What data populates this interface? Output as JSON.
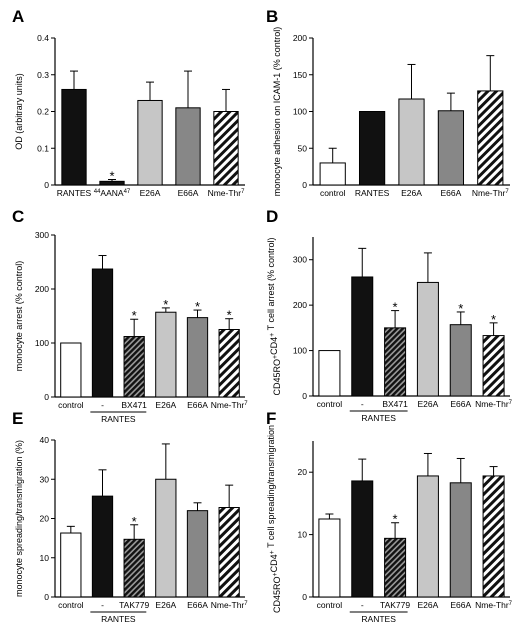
{
  "chart_data": [
    {
      "panel": "A",
      "type": "bar",
      "ylabel": "OD (arbitrary units)",
      "ylim": [
        0,
        0.4
      ],
      "yticks": [
        "0",
        "0.1",
        "0.2",
        "0.3",
        "0.4"
      ],
      "categories": [
        "RANTES",
        "44AANA47",
        "E26A",
        "E66A",
        "Nme-Thr7"
      ],
      "values": [
        0.26,
        0.01,
        0.23,
        0.21,
        0.2
      ],
      "errors": [
        0.05,
        0.005,
        0.05,
        0.1,
        0.06
      ],
      "significant": [
        false,
        true,
        false,
        false,
        false
      ],
      "fills": [
        "black",
        "black",
        "lightgray",
        "gray",
        "hatch"
      ]
    },
    {
      "panel": "B",
      "type": "bar",
      "ylabel": "monocyte adhesion on ICAM-1 (% control)",
      "ylim": [
        0,
        200
      ],
      "yticks": [
        "0",
        "50",
        "100",
        "150",
        "200"
      ],
      "categories": [
        "control",
        "RANTES",
        "E26A",
        "E66A",
        "Nme-Thr7"
      ],
      "values": [
        30,
        100,
        117,
        101,
        128
      ],
      "errors": [
        20,
        0,
        47,
        24,
        48
      ],
      "significant": [
        false,
        false,
        false,
        false,
        false
      ],
      "fills": [
        "white",
        "black",
        "lightgray",
        "gray",
        "hatch"
      ]
    },
    {
      "panel": "C",
      "type": "bar",
      "ylabel": "monocyte arrest (% control)",
      "ylim": [
        0,
        300
      ],
      "yticks": [
        "0",
        "100",
        "200",
        "300"
      ],
      "categories": [
        "control",
        "-",
        "BX471",
        "E26A",
        "E66A",
        "Nme-Thr7"
      ],
      "group_label": "RANTES",
      "values": [
        100,
        237,
        112,
        157,
        147,
        125
      ],
      "errors": [
        0,
        25,
        32,
        8,
        14,
        20
      ],
      "significant": [
        false,
        false,
        true,
        true,
        true,
        true
      ],
      "fills": [
        "white",
        "black",
        "darkhatch",
        "lightgray",
        "gray",
        "hatch"
      ]
    },
    {
      "panel": "D",
      "type": "bar",
      "ylabel": "CD45RO+CD4+ T cell arrest (% control)",
      "ylim": [
        0,
        350
      ],
      "yticks": [
        "0",
        "100",
        "200",
        "300"
      ],
      "categories": [
        "control",
        "-",
        "BX471",
        "E26A",
        "E66A",
        "Nme-Thr7"
      ],
      "group_label": "RANTES",
      "values": [
        100,
        262,
        150,
        250,
        157,
        133
      ],
      "errors": [
        0,
        63,
        38,
        65,
        28,
        28
      ],
      "significant": [
        false,
        false,
        true,
        false,
        true,
        true
      ],
      "fills": [
        "white",
        "black",
        "darkhatch",
        "lightgray",
        "gray",
        "hatch"
      ]
    },
    {
      "panel": "E",
      "type": "bar",
      "ylabel": "monocyte spreading/transmigration (%)",
      "ylim": [
        0,
        40
      ],
      "yticks": [
        "0",
        "10",
        "20",
        "30",
        "40"
      ],
      "categories": [
        "control",
        "-",
        "TAK779",
        "E26A",
        "E66A",
        "Nme-Thr7"
      ],
      "group_label": "RANTES",
      "values": [
        16.3,
        25.7,
        14.7,
        30,
        22,
        22.8
      ],
      "errors": [
        1.7,
        6.7,
        3.7,
        9,
        2,
        5.7
      ],
      "significant": [
        false,
        false,
        true,
        false,
        false,
        false
      ],
      "fills": [
        "white",
        "black",
        "darkhatch",
        "lightgray",
        "gray",
        "hatch"
      ]
    },
    {
      "panel": "F",
      "type": "bar",
      "ylabel": "CD45RO+CD4+ T cell spreading/transmigration",
      "ylim": [
        0,
        25
      ],
      "yticks": [
        "0",
        "10",
        "20"
      ],
      "categories": [
        "control",
        "-",
        "TAK779",
        "E26A",
        "E66A",
        "Nme-Thr7"
      ],
      "group_label": "RANTES",
      "values": [
        12.5,
        18.6,
        9.4,
        19.4,
        18.3,
        19.4
      ],
      "errors": [
        0.8,
        3.5,
        2.5,
        3.6,
        3.9,
        1.5
      ],
      "significant": [
        false,
        false,
        true,
        false,
        false,
        false
      ],
      "fills": [
        "white",
        "black",
        "darkhatch",
        "lightgray",
        "gray",
        "hatch"
      ]
    }
  ]
}
